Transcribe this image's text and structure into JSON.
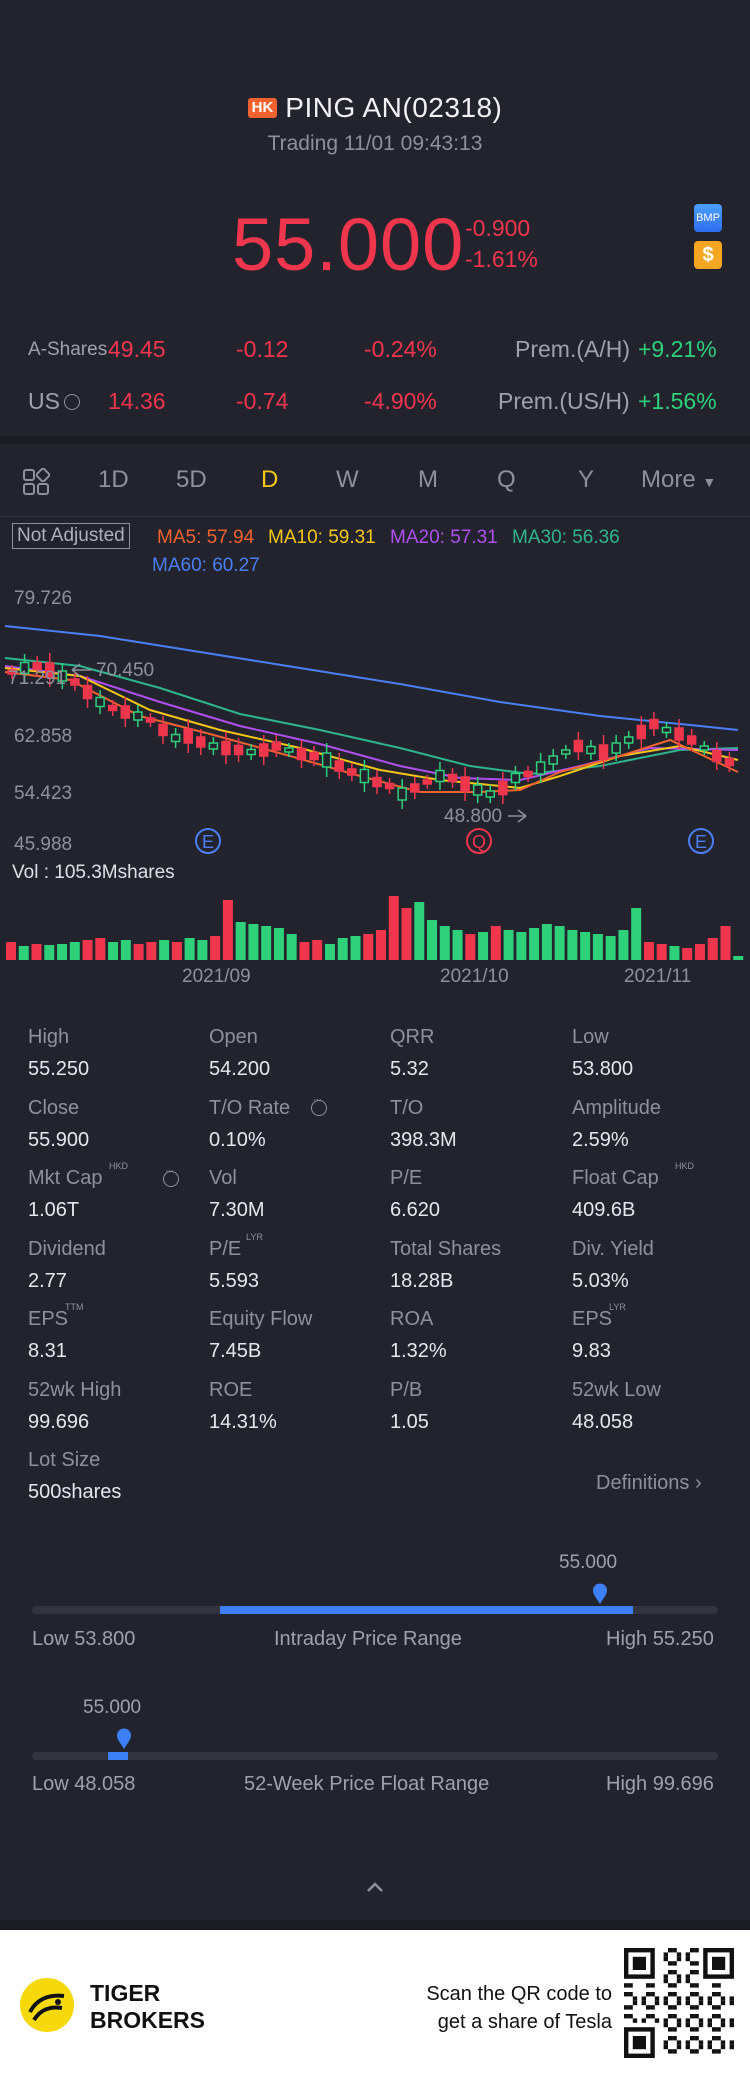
{
  "header": {
    "badge": "HK",
    "title": "PING AN(02318)",
    "subtitle": "Trading 11/01 09:43:13",
    "price": "55.000",
    "change": "-0.900",
    "change_pct": "-1.61%",
    "bmp_label": "BMP",
    "dollar_label": "$"
  },
  "related": [
    {
      "label": "A-Shares",
      "price": "49.45",
      "change": "-0.12",
      "change_pct": "-0.24%",
      "prem_label": "Prem.(A/H)",
      "prem_value": "+9.21%"
    },
    {
      "label": "US",
      "price": "14.36",
      "change": "-0.74",
      "change_pct": "-4.90%",
      "prem_label": "Prem.(US/H)",
      "prem_value": "+1.56%"
    }
  ],
  "tabs": [
    "1D",
    "5D",
    "D",
    "W",
    "M",
    "Q",
    "Y",
    "More"
  ],
  "active_tab": "D",
  "chart": {
    "adjust_label": "Not Adjusted",
    "ma": [
      {
        "label": "MA5: 57.94",
        "color": "#f0622f"
      },
      {
        "label": "MA10: 59.31",
        "color": "#f5c518"
      },
      {
        "label": "MA20: 57.31",
        "color": "#b04ff0"
      },
      {
        "label": "MA30: 56.36",
        "color": "#2fb58c"
      },
      {
        "label": "MA60: 60.27",
        "color": "#4a7ff5"
      }
    ],
    "y_ticks": [
      "79.726",
      "71.291",
      "62.858",
      "54.423",
      "45.988"
    ],
    "high_annotation": "70.450",
    "low_annotation": "48.800",
    "event_markers": [
      "E",
      "Q",
      "E"
    ],
    "vol_label": "Vol  : 105.3Mshares",
    "dates": [
      "2021/09",
      "2021/10",
      "2021/11"
    ]
  },
  "chart_data": {
    "type": "candlestick",
    "y_range": [
      45.988,
      79.726
    ],
    "annotations": {
      "high": 70.45,
      "low": 48.8
    }
  },
  "stats": [
    {
      "label": "High",
      "value": "55.250"
    },
    {
      "label": "Open",
      "value": "54.200"
    },
    {
      "label": "QRR",
      "value": "5.32"
    },
    {
      "label": "Low",
      "value": "53.800"
    },
    {
      "label": "Close",
      "value": "55.900"
    },
    {
      "label": "T/O Rate",
      "value": "0.10%"
    },
    {
      "label": "T/O",
      "value": "398.3M"
    },
    {
      "label": "Amplitude",
      "value": "2.59%"
    },
    {
      "label": "Mkt Cap",
      "value": "1.06T",
      "sup": "HKD"
    },
    {
      "label": "Vol",
      "value": "7.30M"
    },
    {
      "label": "P/E",
      "value": "6.620"
    },
    {
      "label": "Float Cap",
      "value": "409.6B",
      "sup": "HKD"
    },
    {
      "label": "Dividend",
      "value": "2.77"
    },
    {
      "label": "P/E",
      "value": "5.593",
      "sup": "LYR"
    },
    {
      "label": "Total Shares",
      "value": "18.28B"
    },
    {
      "label": "Div. Yield",
      "value": "5.03%"
    },
    {
      "label": "EPS",
      "value": "8.31",
      "sup": "TTM"
    },
    {
      "label": "Equity Flow",
      "value": "7.45B"
    },
    {
      "label": "ROA",
      "value": "1.32%"
    },
    {
      "label": "EPS",
      "value": "9.83",
      "sup": "LYR"
    },
    {
      "label": "52wk High",
      "value": "99.696"
    },
    {
      "label": "ROE",
      "value": "14.31%"
    },
    {
      "label": "P/B",
      "value": "1.05"
    },
    {
      "label": "52wk Low",
      "value": "48.058"
    },
    {
      "label": "Lot Size",
      "value": "500shares"
    }
  ],
  "definitions_label": "Definitions",
  "intraday_range": {
    "current": "55.000",
    "low_label": "Low 53.800",
    "title": "Intraday Price Range",
    "high_label": "High 55.250",
    "fill_fraction": 0.83
  },
  "week52_range": {
    "current": "55.000",
    "low_label": "Low 48.058",
    "title": "52-Week Price Float Range",
    "high_label": "High 99.696",
    "fill_fraction": 0.1
  },
  "footer": {
    "brand_line1": "TIGER",
    "brand_line2": "BROKERS",
    "scan_line1": "Scan the QR code to",
    "scan_line2": "get a share of Tesla"
  }
}
